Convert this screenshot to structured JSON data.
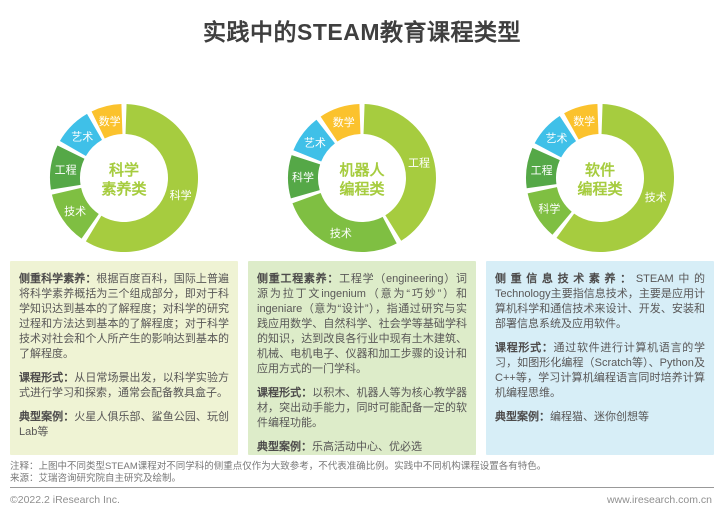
{
  "title": "实践中的STEAM教育课程类型",
  "colors": {
    "light_green": "#a6cc3f",
    "mid_green": "#7fbf42",
    "dark_green": "#55a847",
    "blue": "#3fc0e8",
    "yellow": "#fbc22d",
    "center_text": "#a6cc3f",
    "title_text": "#3f3f3f",
    "body_text": "#595757"
  },
  "chart_data": [
    {
      "type": "pie",
      "title": "科学素养类",
      "center_lines": [
        "科学",
        "素养类"
      ],
      "legend_position": "inside-segments",
      "segments": [
        {
          "label": "科学",
          "approx_share_pct": 58,
          "start_deg": 2,
          "end_deg": 211,
          "color": "#a6cc3f"
        },
        {
          "label": "技术",
          "approx_share_pct": 12,
          "start_deg": 215,
          "end_deg": 257,
          "color": "#7fbf42"
        },
        {
          "label": "工程",
          "approx_share_pct": 10,
          "start_deg": 261,
          "end_deg": 296,
          "color": "#55a847"
        },
        {
          "label": "艺术",
          "approx_share_pct": 8,
          "start_deg": 300,
          "end_deg": 330,
          "color": "#3fc0e8"
        },
        {
          "label": "数学",
          "approx_share_pct": 7,
          "start_deg": 334,
          "end_deg": 358,
          "color": "#fbc22d"
        }
      ]
    },
    {
      "type": "pie",
      "title": "机器人编程类",
      "center_lines": [
        "机器人",
        "编程类"
      ],
      "legend_position": "inside-segments",
      "segments": [
        {
          "label": "工程",
          "approx_share_pct": 41,
          "start_deg": 2,
          "end_deg": 148,
          "color": "#a6cc3f"
        },
        {
          "label": "技术",
          "approx_share_pct": 27,
          "start_deg": 152,
          "end_deg": 250,
          "color": "#7fbf42"
        },
        {
          "label": "科学",
          "approx_share_pct": 9,
          "start_deg": 254,
          "end_deg": 288,
          "color": "#55a847"
        },
        {
          "label": "艺术",
          "approx_share_pct": 8,
          "start_deg": 292,
          "end_deg": 322,
          "color": "#3fc0e8"
        },
        {
          "label": "数学",
          "approx_share_pct": 9,
          "start_deg": 326,
          "end_deg": 358,
          "color": "#fbc22d"
        }
      ]
    },
    {
      "type": "pie",
      "title": "软件编程类",
      "center_lines": [
        "软件",
        "编程类"
      ],
      "legend_position": "inside-segments",
      "segments": [
        {
          "label": "技术",
          "approx_share_pct": 59,
          "start_deg": 2,
          "end_deg": 216,
          "color": "#a6cc3f"
        },
        {
          "label": "科学",
          "approx_share_pct": 11,
          "start_deg": 220,
          "end_deg": 258,
          "color": "#7fbf42"
        },
        {
          "label": "工程",
          "approx_share_pct": 9,
          "start_deg": 262,
          "end_deg": 294,
          "color": "#55a847"
        },
        {
          "label": "艺术",
          "approx_share_pct": 8,
          "start_deg": 298,
          "end_deg": 327,
          "color": "#3fc0e8"
        },
        {
          "label": "数学",
          "approx_share_pct": 8,
          "start_deg": 331,
          "end_deg": 358,
          "color": "#fbc22d"
        }
      ]
    }
  ],
  "boxes": [
    {
      "paragraphs": [
        {
          "label": "侧重科学素养：",
          "text": "根据百度百科，国际上普遍将科学素养概括为三个组成部分，即对于科学知识达到基本的了解程度；对科学的研究过程和方法达到基本的了解程度；对于科学技术对社会和个人所产生的影响达到基本的了解程度。"
        },
        {
          "label": "课程形式：",
          "text": "从日常场景出发，以科学实验方式进行学习和探索，通常会配备教具盒子。"
        },
        {
          "label": "典型案例：",
          "text": "火星人俱乐部、鲨鱼公园、玩创Lab等"
        }
      ]
    },
    {
      "paragraphs": [
        {
          "label": "侧重工程素养：",
          "text": "工程学（engineering）词源为拉丁文ingenium（意为“巧妙”）和ingeniare（意为“设计”），指通过研究与实践应用数学、自然科学、社会学等基础学科的知识，达到改良各行业中现有土木建筑、机械、电机电子、仪器和加工步骤的设计和应用方式的一门学科。"
        },
        {
          "label": "课程形式：",
          "text": "以积木、机器人等为核心教学器材，突出动手能力，同时可能配备一定的软件编程功能。"
        },
        {
          "label": "典型案例：",
          "text": "乐高活动中心、优必选"
        }
      ]
    },
    {
      "paragraphs": [
        {
          "label": "侧重信息技术素养：",
          "text": "STEAM中的Technology主要指信息技术，主要是应用计算机科学和通信技术来设计、开发、安装和部署信息系统及应用软件。"
        },
        {
          "label": "课程形式：",
          "text": "通过软件进行计算机语言的学习，如图形化编程（Scratch等）、Python及C++等，学习计算机编程语言同时培养计算机编程思维。"
        },
        {
          "label": "典型案例：",
          "text": "编程猫、迷你创想等"
        }
      ]
    }
  ],
  "footnotes": {
    "note": "注释：上图中不同类型STEAM课程对不同学科的侧重点仅作为大致参考，不代表准确比例。实践中不同机构课程设置各有特色。",
    "source": "来源：艾瑞咨询研究院自主研究及绘制。"
  },
  "footer": {
    "copyright": "©2022.2 iResearch Inc.",
    "website": "www.iresearch.com.cn"
  }
}
